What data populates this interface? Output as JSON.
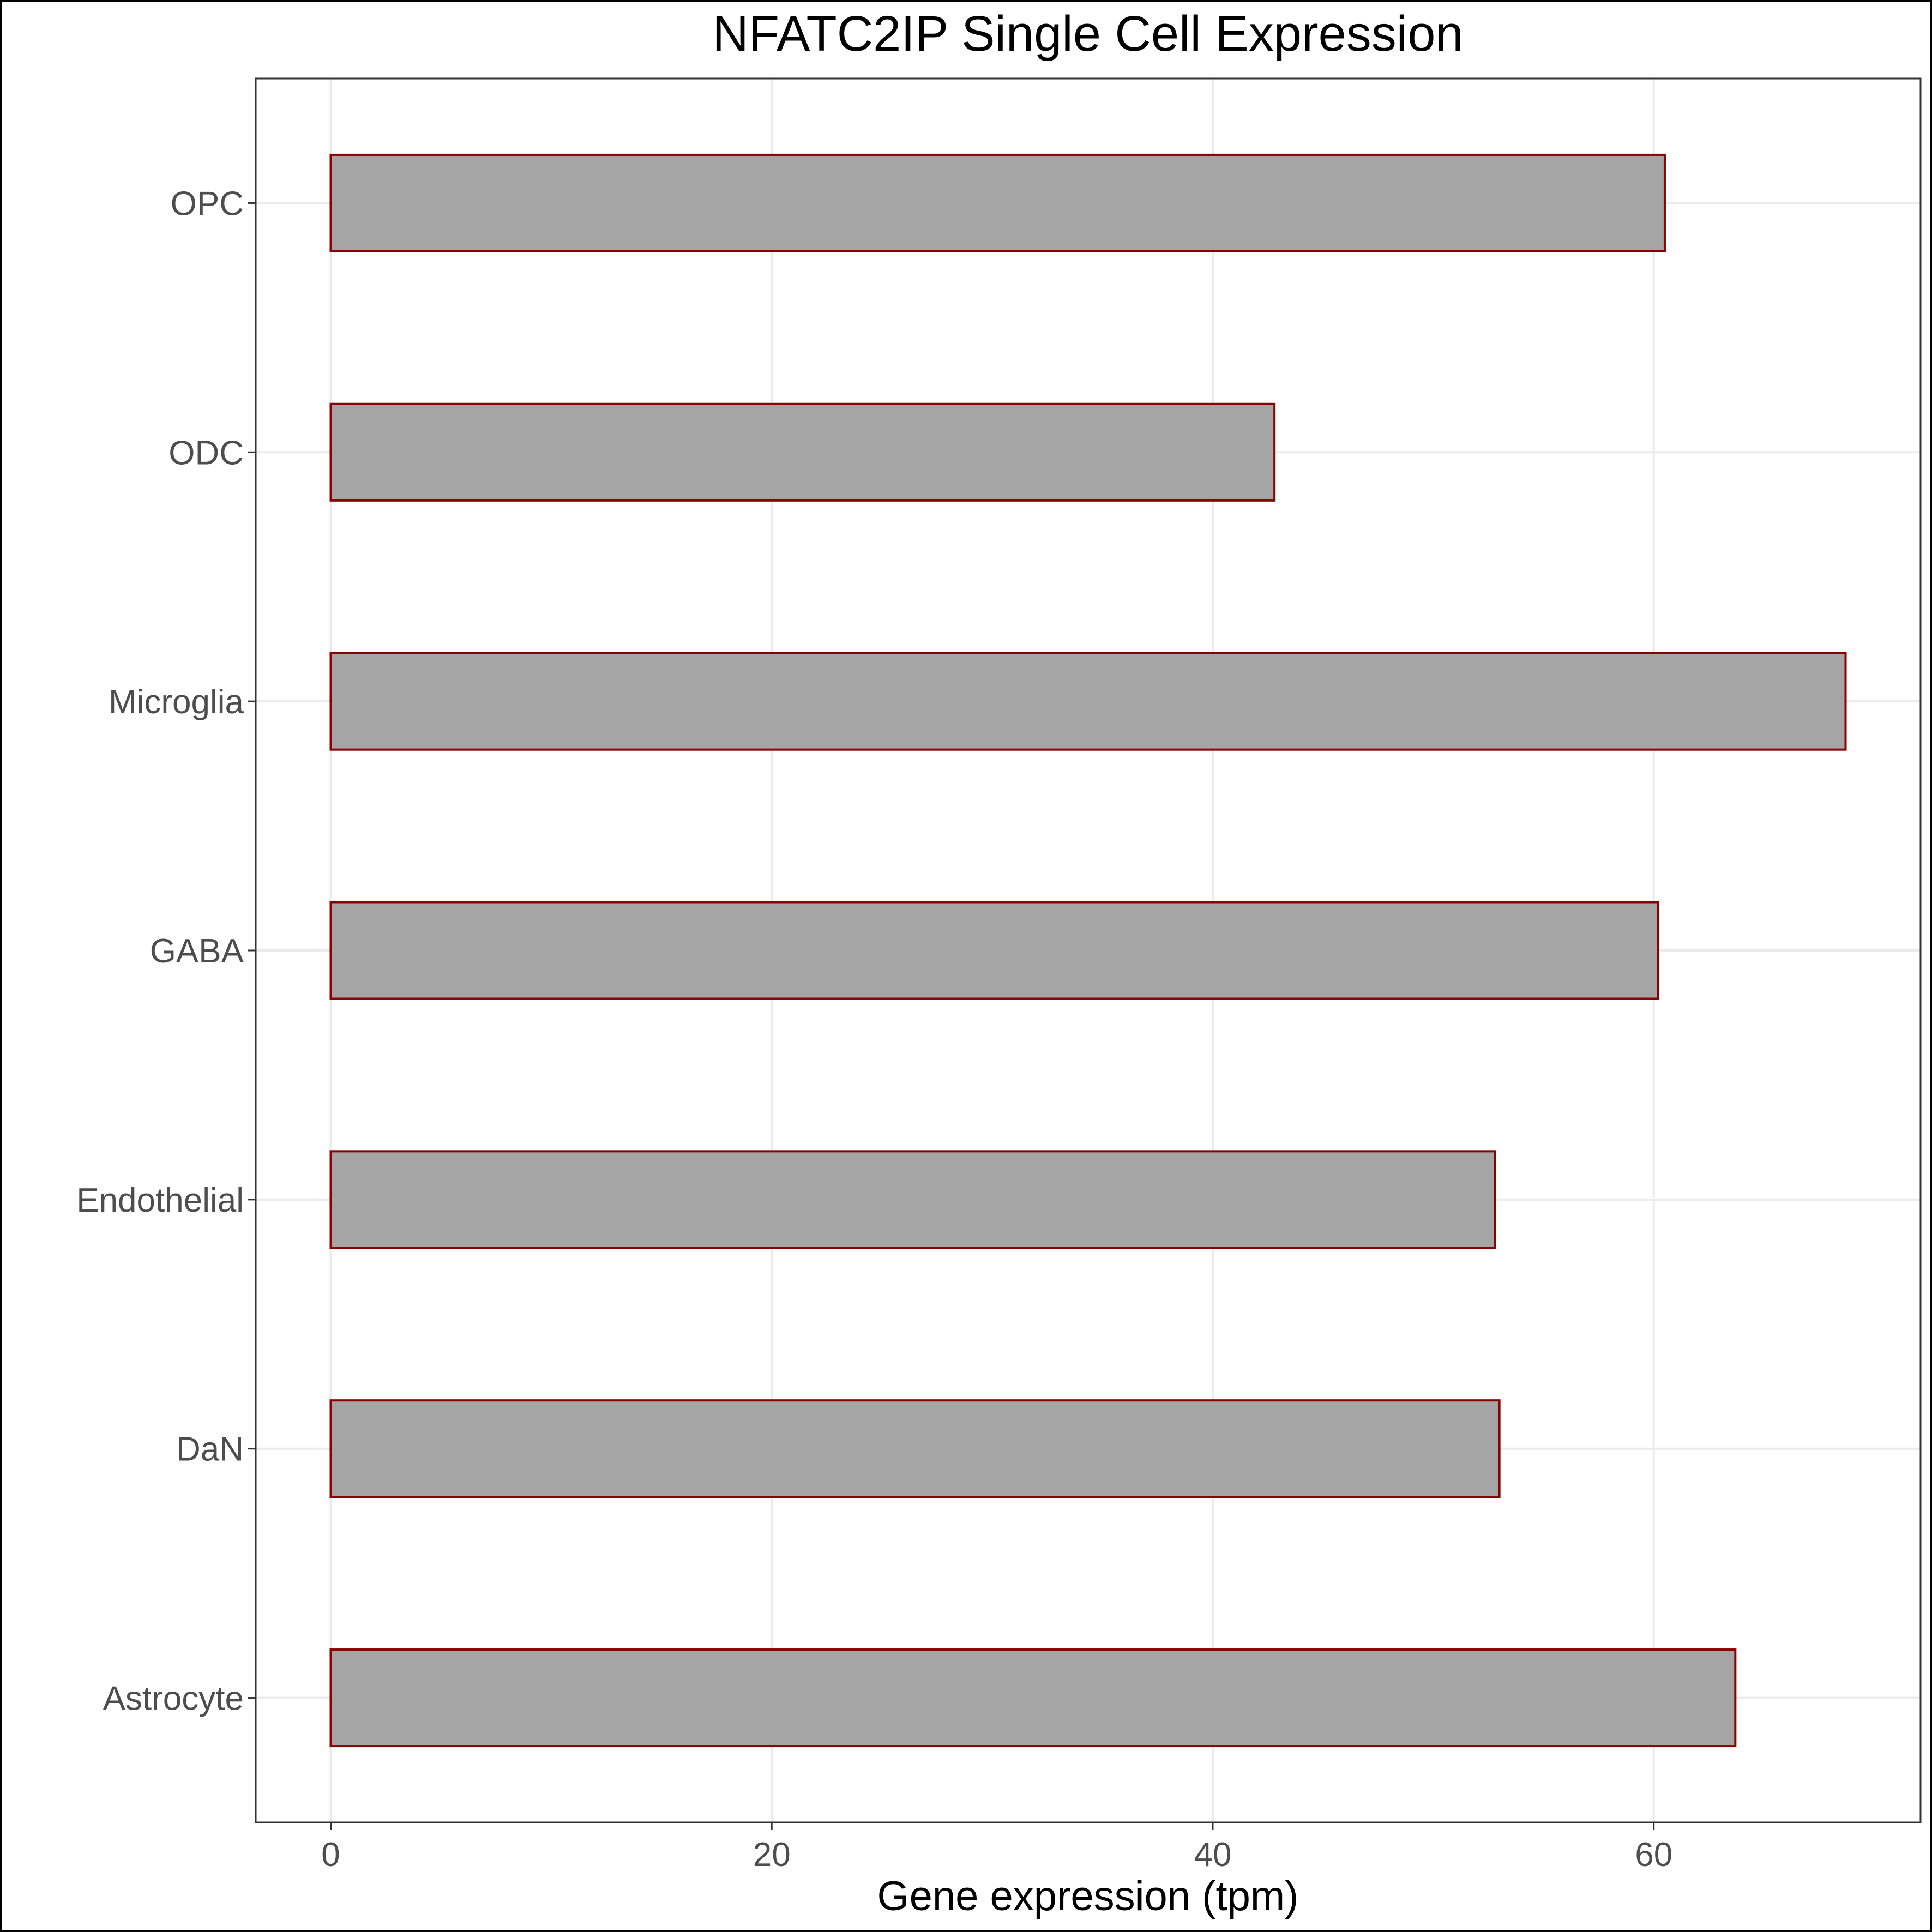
{
  "chart_data": {
    "type": "bar",
    "orientation": "horizontal",
    "title": "NFATC2IP Single Cell Expression",
    "xlabel": "Gene expression (tpm)",
    "ylabel": "",
    "categories": [
      "Astrocyte",
      "DaN",
      "Endothelial",
      "GABA",
      "Microglia",
      "ODC",
      "OPC"
    ],
    "values": [
      63.7,
      53.0,
      52.8,
      60.2,
      68.7,
      42.8,
      60.5
    ],
    "xticks": [
      0,
      20,
      40,
      60
    ],
    "xlim": [
      -3.4,
      72.1
    ],
    "grid": true,
    "legend": "none",
    "colors": {
      "bar_fill": "#a5a5a5",
      "bar_stroke": "#8b0000",
      "grid": "#ebebeb"
    }
  }
}
